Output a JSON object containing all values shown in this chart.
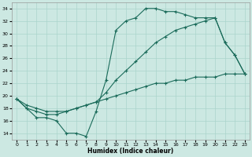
{
  "xlabel": "Humidex (Indice chaleur)",
  "background_color": "#cce8e2",
  "grid_color": "#aad4cc",
  "line_color": "#1a6b5a",
  "xlim": [
    -0.5,
    23.5
  ],
  "ylim": [
    13,
    35
  ],
  "xticks": [
    0,
    1,
    2,
    3,
    4,
    5,
    6,
    7,
    8,
    9,
    10,
    11,
    12,
    13,
    14,
    15,
    16,
    17,
    18,
    19,
    20,
    21,
    22,
    23
  ],
  "yticks": [
    14,
    16,
    18,
    20,
    22,
    24,
    26,
    28,
    30,
    32,
    34
  ],
  "line1_x": [
    0,
    1,
    2,
    3,
    4,
    5,
    6,
    7,
    8,
    9,
    10,
    11,
    12,
    13,
    14,
    15,
    16,
    17,
    18,
    19,
    20,
    21,
    22,
    23
  ],
  "line1_y": [
    19.5,
    18.0,
    16.5,
    16.5,
    16.0,
    14.0,
    14.0,
    13.5,
    17.5,
    22.5,
    30.5,
    32.0,
    32.5,
    34.0,
    34.0,
    33.5,
    33.5,
    33.0,
    32.5,
    32.5,
    32.5,
    28.5,
    26.5,
    23.5
  ],
  "line2_x": [
    0,
    1,
    2,
    3,
    4,
    5,
    6,
    7,
    8,
    9,
    10,
    11,
    12,
    13,
    14,
    15,
    16,
    17,
    18,
    19,
    20,
    21,
    22,
    23
  ],
  "line2_y": [
    19.5,
    18.0,
    17.5,
    17.0,
    17.0,
    17.5,
    18.0,
    18.5,
    19.0,
    20.5,
    22.5,
    24.0,
    25.5,
    27.0,
    28.5,
    29.5,
    30.5,
    31.0,
    31.5,
    32.0,
    32.5,
    28.5,
    26.5,
    23.5
  ],
  "line3_x": [
    0,
    1,
    2,
    3,
    4,
    5,
    6,
    7,
    8,
    9,
    10,
    11,
    12,
    13,
    14,
    15,
    16,
    17,
    18,
    19,
    20,
    21,
    22,
    23
  ],
  "line3_y": [
    19.5,
    18.5,
    18.0,
    17.5,
    17.5,
    17.5,
    18.0,
    18.5,
    19.0,
    19.5,
    20.0,
    20.5,
    21.0,
    21.5,
    22.0,
    22.0,
    22.5,
    22.5,
    23.0,
    23.0,
    23.0,
    23.5,
    23.5,
    23.5
  ]
}
